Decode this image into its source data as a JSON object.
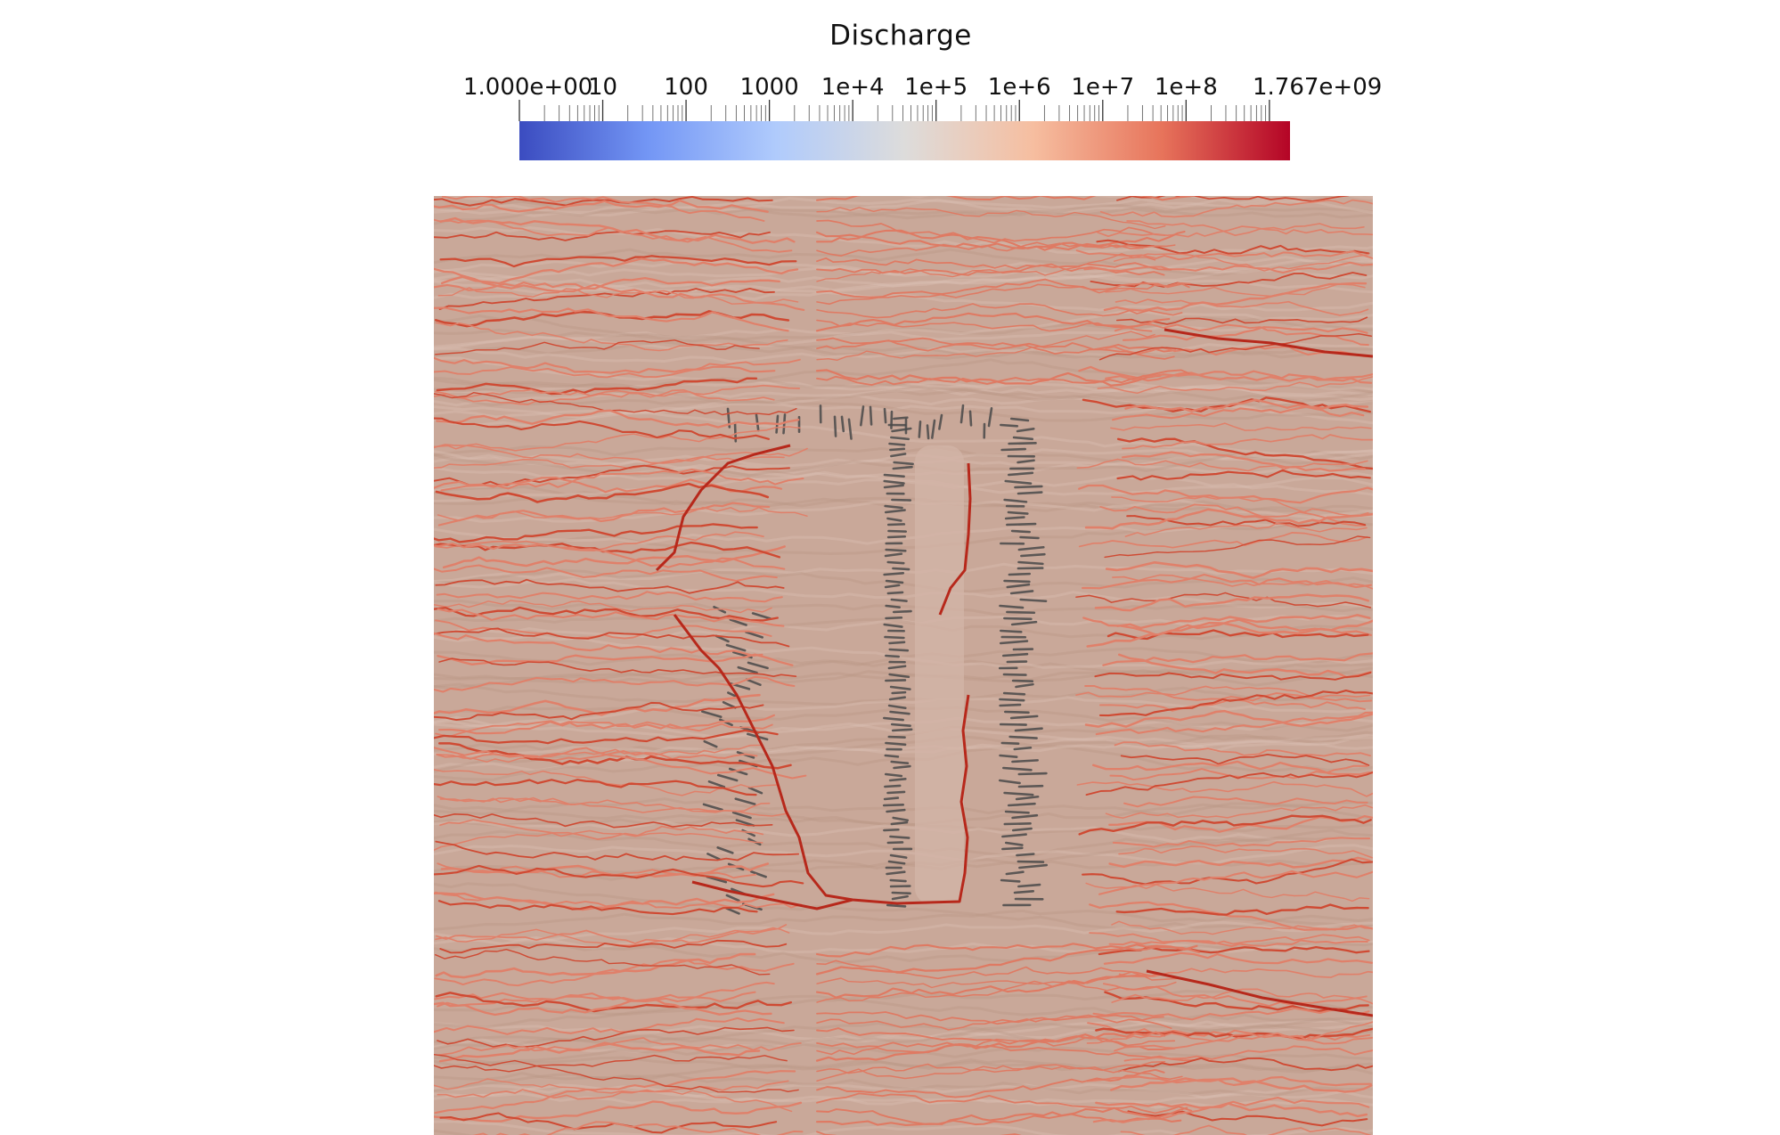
{
  "colorbar": {
    "title": "Discharge",
    "scale": "log",
    "min": 1,
    "max": 1767000000,
    "min_label": "1.000e+00",
    "max_label": "1.767e+09",
    "tick_labels": [
      "10",
      "100",
      "1000",
      "1e+4",
      "1e+5",
      "1e+6",
      "1e+7",
      "1e+8"
    ],
    "tick_values": [
      10,
      100,
      1000,
      10000,
      100000,
      1000000,
      10000000,
      100000000
    ],
    "colormap": [
      "#3b4cc0",
      "#7396f5",
      "#b0cbfc",
      "#dddcdb",
      "#f6bea0",
      "#e7745b",
      "#b40426"
    ]
  },
  "scene": {
    "terrain_color": "#c9a899",
    "channel_color": "#d2452f",
    "ridge_shadow_color": "#4a4a4a"
  }
}
